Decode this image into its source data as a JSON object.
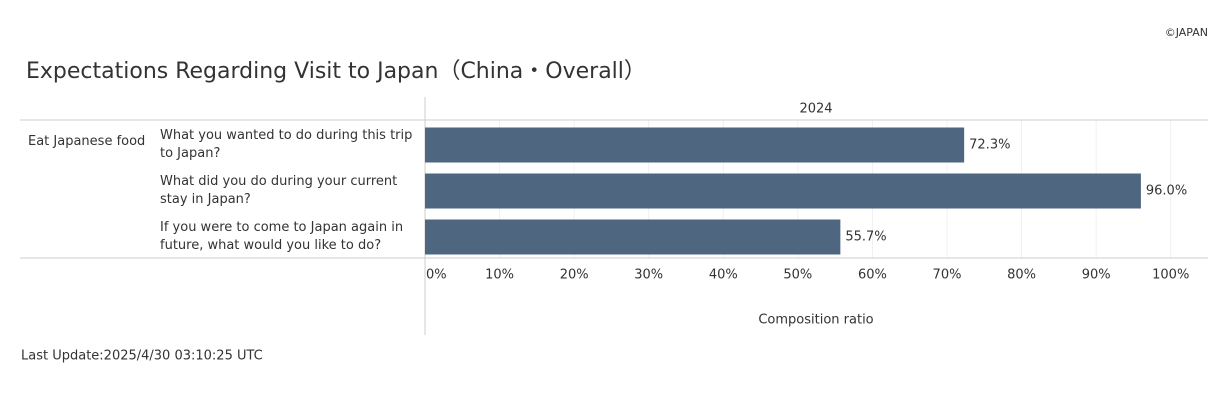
{
  "copyright": "©JAPAN",
  "chart_data": {
    "type": "bar",
    "orientation": "horizontal",
    "title": "Expectations Regarding Visit to Japan（China・Overall）",
    "row_header": "Eat Japanese food",
    "column_header": "2024",
    "categories": [
      "What you wanted to do during this trip to Japan?",
      "What did you do during your current stay in Japan?",
      "If you were to come to Japan again in future, what would you like to do?"
    ],
    "values": [
      72.3,
      96.0,
      55.7
    ],
    "value_labels": [
      "72.3%",
      "96.0%",
      "55.7%"
    ],
    "color": "#4f6680",
    "xlim": [
      0,
      105
    ],
    "xticks": [
      {
        "value": 0,
        "label": "0%"
      },
      {
        "value": 10,
        "label": "10%"
      },
      {
        "value": 20,
        "label": "20%"
      },
      {
        "value": 30,
        "label": "30%"
      },
      {
        "value": 40,
        "label": "40%"
      },
      {
        "value": 50,
        "label": "50%"
      },
      {
        "value": 60,
        "label": "60%"
      },
      {
        "value": 70,
        "label": "70%"
      },
      {
        "value": 80,
        "label": "80%"
      },
      {
        "value": 90,
        "label": "90%"
      },
      {
        "value": 100,
        "label": "100%"
      }
    ],
    "xlabel": "Composition ratio",
    "grid": true
  },
  "footer": "Last Update:2025/4/30 03:10:25 UTC"
}
